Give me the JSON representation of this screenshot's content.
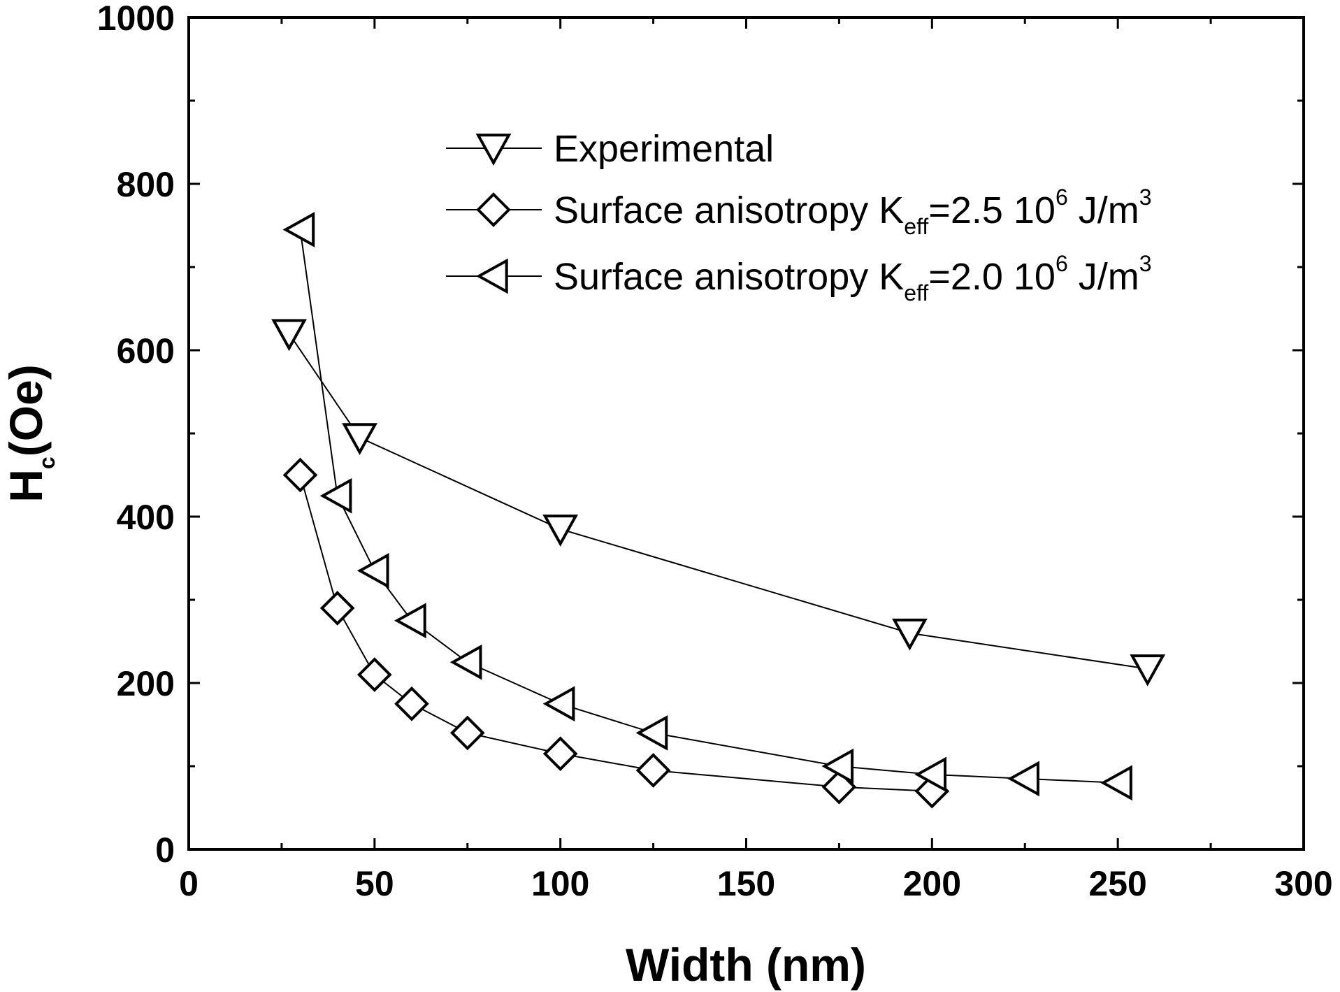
{
  "chart_data": {
    "type": "line",
    "title": "",
    "xlabel": "Width (nm)",
    "ylabel": {
      "main": "H",
      "sub": "c",
      "rest": "(Oe)"
    },
    "xlim": [
      0,
      300
    ],
    "ylim": [
      0,
      1000
    ],
    "xticks": [
      0,
      50,
      100,
      150,
      200,
      250,
      300
    ],
    "yticks": [
      0,
      200,
      400,
      600,
      800,
      1000
    ],
    "xtick_labels": [
      "0",
      "50",
      "100",
      "150",
      "200",
      "250",
      "300"
    ],
    "ytick_labels": [
      "0",
      "200",
      "400",
      "600",
      "800",
      "1000"
    ],
    "grid": false,
    "legend_position": "top-right",
    "series": [
      {
        "name": "Experimental",
        "marker": "triangle-down",
        "legend": {
          "pre": "Experimental",
          "sub": "",
          "mid": "",
          "sup1": "",
          "post": "",
          "sup2": ""
        },
        "x": [
          27,
          46,
          100,
          194,
          258
        ],
        "y": [
          620,
          495,
          385,
          260,
          217
        ]
      },
      {
        "name": "Surface anisotropy Keff=2.5 10^6 J/m^3",
        "marker": "diamond",
        "legend": {
          "pre": "Surface anisotropy K",
          "sub": "eff",
          "mid": "=2.5 10",
          "sup1": "6",
          "post": " J/m",
          "sup2": "3"
        },
        "x": [
          30,
          40,
          50,
          60,
          75,
          100,
          125,
          175,
          200
        ],
        "y": [
          450,
          290,
          210,
          175,
          140,
          115,
          95,
          75,
          70
        ]
      },
      {
        "name": "Surface anisotropy Keff=2.0 10^6 J/m^3",
        "marker": "triangle-left",
        "legend": {
          "pre": "Surface anisotropy K",
          "sub": "eff",
          "mid": "=2.0 10",
          "sup1": "6",
          "post": " J/m",
          "sup2": "3"
        },
        "x": [
          30,
          40,
          50,
          60,
          75,
          100,
          125,
          175,
          200,
          225,
          250
        ],
        "y": [
          745,
          425,
          335,
          275,
          225,
          175,
          140,
          100,
          90,
          85,
          80
        ]
      }
    ]
  }
}
